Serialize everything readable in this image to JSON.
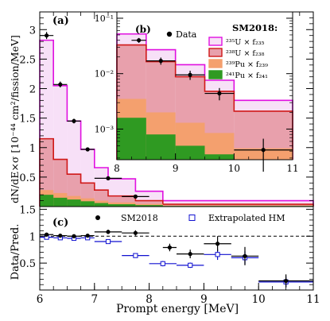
{
  "chart_data": [
    {
      "panel": "(a)",
      "type": "area",
      "xlim": [
        6,
        11
      ],
      "ylim": [
        0,
        3.3
      ],
      "ylabel": "dN/dE×σ [10⁻⁴⁴ cm²/fission/MeV]",
      "yticks": [
        0.5,
        1,
        1.5,
        2,
        2.5,
        3
      ],
      "ytick_labels": [
        "0.5",
        "1",
        "1.5",
        "2",
        "2.5",
        "3"
      ],
      "bin_edges": [
        6,
        6.25,
        6.5,
        6.75,
        7,
        7.25,
        7.75,
        8.25,
        8.75,
        9.25,
        9.75,
        11
      ],
      "stack_edges": [
        6,
        6.25,
        6.5,
        6.75,
        7,
        7.25,
        7.75,
        8.25,
        11
      ],
      "series": [
        {
          "name": "²⁴¹Pu × f₂₄₁",
          "color": "#2f9a22",
          "values": [
            0.2,
            0.15,
            0.12,
            0.09,
            0.06,
            0.04,
            0.025,
            0.01
          ]
        },
        {
          "name": "²³⁹Pu × f₂₃₉",
          "color": "#f4a06e",
          "values": [
            0.28,
            0.23,
            0.18,
            0.14,
            0.1,
            0.07,
            0.045,
            0.02
          ]
        },
        {
          "name": "²³⁸U × f₂₃₈",
          "color": "#e8a0ac",
          "edge_color": "#d01818",
          "values": [
            1.15,
            0.8,
            0.55,
            0.4,
            0.28,
            0.18,
            0.1,
            0.04
          ]
        },
        {
          "name": "²³⁵U × f₂₃₅",
          "color": "#f7e0f7",
          "edge_color": "#e010e0",
          "values": [
            2.82,
            2.05,
            1.45,
            0.97,
            0.66,
            0.47,
            0.26,
            0.1
          ]
        }
      ],
      "data_series": {
        "name": "Data",
        "x": [
          6.125,
          6.375,
          6.625,
          6.875,
          7.25,
          7.75
        ],
        "y": [
          2.9,
          2.07,
          1.45,
          0.97,
          0.48,
          0.17
        ],
        "yerr": [
          0.06,
          0.05,
          0.04,
          0.03,
          0.02,
          0.015
        ],
        "xerr": [
          0.125,
          0.125,
          0.125,
          0.125,
          0.25,
          0.25
        ]
      }
    },
    {
      "panel": "(b)",
      "type": "area",
      "xlim": [
        8,
        11
      ],
      "ylim": [
        0.00028,
        0.13
      ],
      "yscale": "log",
      "xticks": [
        8,
        9,
        10,
        11
      ],
      "xtick_labels": [
        "8",
        "9",
        "10",
        "11"
      ],
      "ytick_labels": [
        "10⁻³",
        "10⁻²",
        "10⁻¹"
      ],
      "legend_header": "SM2018:",
      "legend_data_label": "Data",
      "legend_position": "top-right",
      "bin_edges": [
        8,
        8.5,
        9,
        9.5,
        10,
        11
      ],
      "series": [
        {
          "name": "²⁴¹Pu × f₂₄₁",
          "color": "#2f9a22",
          "values": [
            0.0016,
            0.0008,
            0.0005,
            0.00035,
            0.0002
          ]
        },
        {
          "name": "²³⁹Pu × f₂₃₉",
          "color": "#f4a06e",
          "values": [
            0.0035,
            0.002,
            0.0013,
            0.00085,
            0.00045
          ]
        },
        {
          "name": "²³⁸U × f₂₃₈",
          "color": "#e8a0ac",
          "edge_color": "#d01818",
          "values": [
            0.033,
            0.0165,
            0.0088,
            0.0048,
            0.0021
          ]
        },
        {
          "name": "²³⁵U × f₂₃₅",
          "color": "#f7e0f7",
          "edge_color": "#e010e0",
          "values": [
            0.052,
            0.027,
            0.0145,
            0.0076,
            0.0033
          ]
        }
      ],
      "data_series": {
        "name": "Data",
        "x": [
          8.375,
          8.75,
          9.25,
          9.75,
          10.5
        ],
        "y": [
          0.04,
          0.017,
          0.0095,
          0.0044,
          0.00042
        ],
        "yerr_low": [
          0.004,
          0.0025,
          0.0018,
          0.0011,
          0.00025
        ],
        "yerr_high": [
          0.004,
          0.0025,
          0.0018,
          0.0011,
          0.00025
        ],
        "xerr": [
          0.125,
          0.25,
          0.25,
          0.25,
          0.5
        ]
      }
    },
    {
      "panel": "(c)",
      "type": "scatter",
      "xlim": [
        6,
        11
      ],
      "ylim": [
        0,
        1.55
      ],
      "xlabel": "Prompt energy [MeV]",
      "ylabel": "Data/Pred.",
      "xticks": [
        6,
        7,
        8,
        9,
        10,
        11
      ],
      "xtick_labels": [
        "6",
        "7",
        "8",
        "9",
        "10",
        "11"
      ],
      "yticks": [
        0.5,
        1,
        1.5
      ],
      "ytick_labels": [
        "0.5",
        "1",
        "1.5"
      ],
      "reference_line": 1,
      "legend_position": "top",
      "series": [
        {
          "name": "SM2018",
          "marker": "filled-circle",
          "color": "#000000",
          "x": [
            6.125,
            6.375,
            6.625,
            6.875,
            7.25,
            7.75,
            8.375,
            8.75,
            9.25,
            9.75,
            10.5
          ],
          "y": [
            1.03,
            1.01,
            1.0,
            1.01,
            1.08,
            1.06,
            0.79,
            0.67,
            0.86,
            0.63,
            0.17
          ],
          "yerr": [
            0.03,
            0.03,
            0.03,
            0.03,
            0.04,
            0.05,
            0.07,
            0.08,
            0.14,
            0.17,
            0.12
          ],
          "xerr": [
            0.125,
            0.125,
            0.125,
            0.125,
            0.25,
            0.25,
            0.125,
            0.25,
            0.25,
            0.25,
            0.5
          ]
        },
        {
          "name": "Extrapolated HM",
          "marker": "open-square",
          "color": "#1010d0",
          "x": [
            6.125,
            6.375,
            6.625,
            6.875,
            7.25,
            7.75,
            8.25,
            8.75,
            9.25,
            9.75,
            10.5
          ],
          "y": [
            0.98,
            0.97,
            0.96,
            0.97,
            0.9,
            0.64,
            0.49,
            0.46,
            0.66,
            0.6,
            0.15
          ],
          "yerr": [
            0.03,
            0.03,
            0.03,
            0.03,
            0.03,
            0.04,
            0.05,
            0.05,
            0.1,
            0.12,
            0.1
          ],
          "xerr": [
            0.125,
            0.125,
            0.125,
            0.125,
            0.25,
            0.25,
            0.25,
            0.25,
            0.25,
            0.25,
            0.5
          ]
        }
      ]
    }
  ]
}
